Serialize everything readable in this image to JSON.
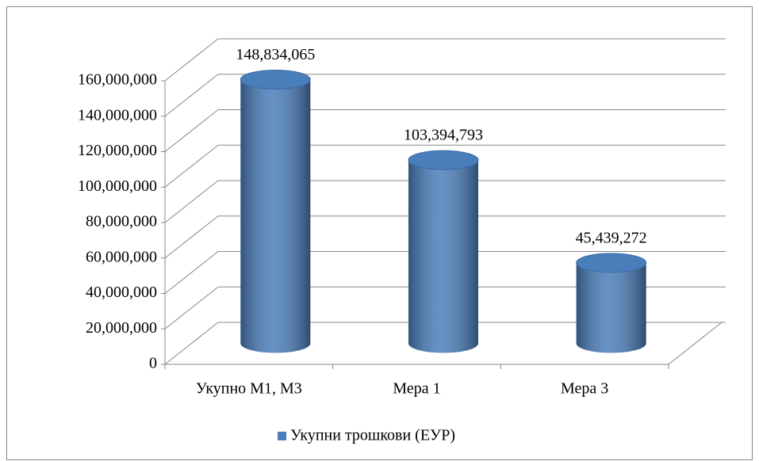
{
  "chart_data": {
    "type": "bar3d",
    "categories": [
      "Укупно М1, М3",
      "Мера 1",
      "Мера 3"
    ],
    "series": [
      {
        "name": "Укупни трошкови (ЕУР)",
        "color": "#4a7ebb",
        "values": [
          148834065,
          103394793,
          45439272
        ],
        "value_labels": [
          "148,834,065",
          "103,394,793",
          "45,439,272"
        ]
      }
    ],
    "ylim": [
      0,
      160000000
    ],
    "yticks": [
      0,
      {
        "value": 20000000,
        "label": "20,000,000"
      },
      {
        "value": 40000000,
        "label": "40,000,000"
      },
      {
        "value": 60000000,
        "label": "60,000,000"
      },
      {
        "value": 80000000,
        "label": "80,000,000"
      },
      {
        "value": 100000000,
        "label": "100,000,000"
      },
      {
        "value": 120000000,
        "label": "120,000,000"
      },
      {
        "value": 140000000,
        "label": "140,000,000"
      },
      {
        "value": 160000000,
        "label": "160,000,000"
      }
    ],
    "grid": true,
    "legend": "bottom"
  }
}
